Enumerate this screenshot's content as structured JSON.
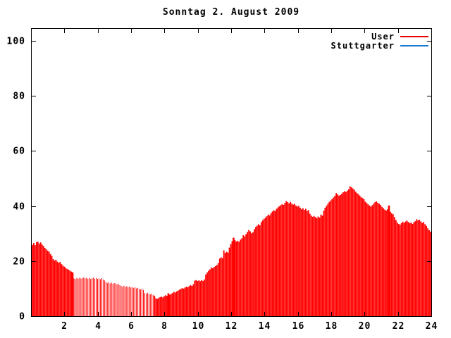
{
  "title": "Sonntag 2. August 2009",
  "legend": {
    "items": [
      {
        "label": "User",
        "color": "#e60000"
      },
      {
        "label": "Stuttgarter",
        "color": "#1778d2"
      }
    ]
  },
  "chart_data": {
    "type": "bar",
    "title": "Sonntag 2. August 2009",
    "xlabel": "",
    "ylabel": "",
    "xlim": [
      0,
      24
    ],
    "ylim": [
      0,
      104.6
    ],
    "x_ticks": [
      2,
      4,
      6,
      8,
      10,
      12,
      14,
      16,
      18,
      20,
      22,
      24
    ],
    "y_ticks": [
      0,
      20,
      40,
      60,
      80,
      100
    ],
    "grid": false,
    "legend_position": "top-right-inside",
    "x_step_minutes": 5,
    "series": [
      {
        "name": "User",
        "color": "#ff0000",
        "values": [
          25.9,
          26.6,
          25.8,
          26.9,
          27.0,
          26.3,
          26.8,
          26.0,
          25.5,
          24.8,
          24.3,
          23.8,
          23.4,
          22.6,
          21.9,
          20.7,
          20.2,
          20.5,
          19.8,
          19.4,
          19.7,
          18.9,
          18.4,
          18.0,
          17.6,
          17.2,
          16.9,
          16.6,
          16.2,
          15.9,
          13.7,
          13.5,
          13.9,
          13.6,
          14.0,
          13.7,
          13.8,
          14.1,
          13.7,
          14.0,
          13.6,
          13.9,
          13.5,
          13.8,
          14.0,
          13.6,
          13.9,
          13.5,
          13.7,
          13.4,
          13.8,
          13.3,
          13.0,
          12.5,
          12.0,
          12.3,
          11.9,
          12.2,
          11.8,
          12.0,
          11.9,
          11.5,
          11.8,
          11.3,
          11.0,
          10.7,
          11.1,
          10.6,
          10.9,
          10.5,
          10.8,
          10.4,
          10.6,
          10.2,
          10.5,
          10.1,
          10.3,
          9.9,
          9.7,
          10.0,
          9.5,
          8.4,
          8.2,
          8.5,
          8.1,
          7.9,
          8.2,
          7.7,
          7.4,
          6.5,
          6.3,
          6.6,
          6.9,
          7.1,
          6.8,
          7.3,
          7.6,
          7.4,
          8.3,
          7.8,
          8.1,
          8.4,
          8.8,
          8.6,
          9.0,
          9.3,
          9.6,
          9.9,
          10.2,
          10.0,
          10.4,
          10.7,
          10.5,
          10.9,
          11.3,
          11.0,
          11.6,
          12.9,
          13.1,
          12.8,
          13.0,
          12.7,
          13.1,
          12.8,
          13.3,
          15.1,
          15.9,
          16.5,
          17.0,
          17.7,
          17.4,
          17.9,
          18.2,
          18.6,
          19.3,
          20.9,
          21.4,
          21.1,
          23.9,
          23.0,
          23.4,
          23.1,
          24.9,
          26.2,
          27.3,
          28.5,
          27.6,
          27.1,
          27.4,
          27.0,
          27.8,
          28.3,
          29.4,
          29.0,
          29.8,
          30.6,
          31.3,
          30.8,
          30.1,
          30.5,
          31.6,
          32.4,
          32.9,
          33.4,
          33.0,
          34.2,
          34.8,
          35.4,
          35.8,
          36.3,
          36.9,
          36.6,
          37.4,
          38.0,
          38.5,
          38.2,
          39.0,
          39.5,
          39.9,
          40.3,
          40.7,
          40.4,
          41.1,
          41.8,
          41.4,
          41.0,
          41.5,
          40.9,
          40.5,
          40.8,
          40.2,
          39.8,
          40.1,
          39.4,
          38.8,
          39.2,
          38.6,
          39.0,
          38.2,
          38.5,
          37.2,
          36.5,
          36.1,
          36.4,
          36.0,
          35.6,
          36.2,
          35.8,
          36.9,
          36.5,
          38.3,
          39.4,
          40.1,
          40.8,
          41.5,
          42.0,
          42.5,
          43.1,
          43.7,
          44.7,
          44.2,
          43.8,
          44.0,
          44.5,
          45.0,
          45.4,
          45.1,
          45.6,
          46.1,
          47.2,
          46.8,
          46.4,
          45.9,
          45.2,
          44.7,
          44.3,
          43.8,
          43.2,
          42.9,
          42.5,
          41.6,
          41.1,
          40.6,
          40.2,
          39.8,
          40.3,
          40.9,
          41.4,
          41.7,
          41.2,
          40.8,
          40.4,
          39.7,
          39.2,
          38.7,
          38.4,
          38.8,
          40.2,
          37.9,
          37.4,
          37.0,
          36.0,
          34.9,
          34.0,
          33.5,
          33.2,
          33.8,
          34.3,
          33.9,
          34.4,
          34.7,
          34.2,
          33.8,
          34.0,
          33.5,
          34.1,
          34.5,
          35.2,
          34.8,
          35.0,
          34.4,
          33.9,
          34.2,
          33.4,
          32.8,
          31.9,
          31.2,
          30.7
        ]
      },
      {
        "name": "Stuttgarter",
        "color": "#1778d2",
        "values_visible": false
      }
    ],
    "highlight_indices": [
      29,
      98,
      145,
      257
    ],
    "bar_style": {
      "default_width": 1.8,
      "thin_width": 1.0,
      "thin_index_range": [
        30,
        87
      ],
      "highlight_width": 2.6
    }
  },
  "axis_color": "#000000"
}
